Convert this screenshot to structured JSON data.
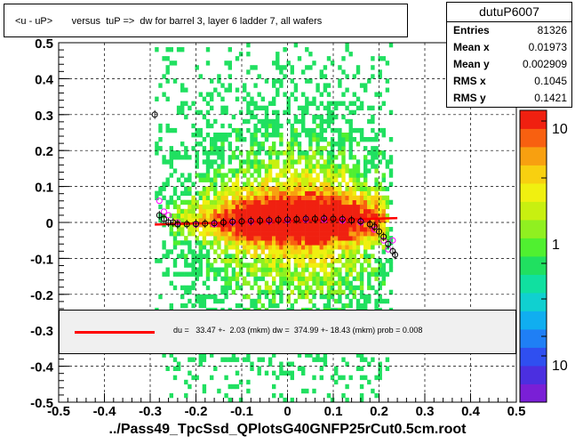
{
  "chart_data": {
    "type": "heatmap",
    "title": "<u - uP>       versus  tuP =>  dw for barrel 3, layer 6 ladder 7, all wafers",
    "xlabel": "../Pass49_TpcSsd_QPlotsG40GNFP25rCut0.5cm.root",
    "ylabel": "",
    "xlim": [
      -0.5,
      0.5
    ],
    "ylim": [
      -0.5,
      0.5
    ],
    "x_ticks": [
      "-0.5",
      "-0.4",
      "-0.3",
      "-0.2",
      "-0.1",
      "0",
      "0.1",
      "0.2",
      "0.3",
      "0.4",
      "0.5"
    ],
    "y_ticks": [
      "0.5",
      "0.4",
      "0.3",
      "0.2",
      "0.1",
      "0",
      "-0.1",
      "-0.2",
      "-0.3",
      "-0.4",
      "-0.5"
    ],
    "grid": true,
    "colorbar": {
      "scale": "log",
      "labels": [
        "10",
        "1",
        "10"
      ]
    },
    "stats": {
      "name": "dutuP6007",
      "rows": [
        {
          "key": "Entries",
          "value": "81326"
        },
        {
          "key": "Mean x",
          "value": "0.01973"
        },
        {
          "key": "Mean y",
          "value": "0.002909"
        },
        {
          "key": "RMS x",
          "value": "0.1045"
        },
        {
          "key": "RMS y",
          "value": "0.1421"
        }
      ]
    },
    "legend_text": "du =   33.47 +-  2.03 (mkm) dw =  374.99 +- 18.43 (mkm) prob = 0.008",
    "fit_line": {
      "x": [
        -0.29,
        0.24
      ],
      "y": [
        -0.006,
        0.012
      ]
    },
    "profile_black": [
      [
        -0.29,
        0.3
      ],
      [
        -0.28,
        0.02
      ],
      [
        -0.27,
        0.01
      ],
      [
        -0.26,
        0.0
      ],
      [
        -0.25,
        0.0
      ],
      [
        -0.24,
        -0.005
      ],
      [
        -0.22,
        -0.005
      ],
      [
        -0.2,
        -0.004
      ],
      [
        -0.18,
        -0.003
      ],
      [
        -0.16,
        -0.002
      ],
      [
        -0.14,
        0.0
      ],
      [
        -0.12,
        0.002
      ],
      [
        -0.1,
        0.003
      ],
      [
        -0.08,
        0.004
      ],
      [
        -0.06,
        0.005
      ],
      [
        -0.04,
        0.006
      ],
      [
        -0.02,
        0.007
      ],
      [
        0.0,
        0.008
      ],
      [
        0.02,
        0.009
      ],
      [
        0.04,
        0.01
      ],
      [
        0.06,
        0.01
      ],
      [
        0.08,
        0.011
      ],
      [
        0.1,
        0.01
      ],
      [
        0.12,
        0.009
      ],
      [
        0.14,
        0.006
      ],
      [
        0.16,
        0.003
      ],
      [
        0.18,
        -0.005
      ],
      [
        0.19,
        -0.012
      ],
      [
        0.2,
        -0.025
      ],
      [
        0.21,
        -0.04
      ],
      [
        0.22,
        -0.06
      ],
      [
        0.23,
        -0.08
      ],
      [
        0.235,
        -0.09
      ]
    ],
    "profile_magenta": [
      [
        -0.28,
        0.06
      ],
      [
        -0.27,
        0.03
      ],
      [
        -0.26,
        0.02
      ],
      [
        -0.24,
        0.0
      ],
      [
        -0.2,
        -0.006
      ],
      [
        -0.16,
        -0.005
      ],
      [
        -0.12,
        0.0
      ],
      [
        -0.08,
        0.002
      ],
      [
        -0.04,
        0.004
      ],
      [
        0.0,
        0.006
      ],
      [
        0.04,
        0.008
      ],
      [
        0.08,
        0.007
      ],
      [
        0.12,
        0.005
      ],
      [
        0.16,
        0.0
      ],
      [
        0.19,
        -0.02
      ],
      [
        0.21,
        -0.05
      ],
      [
        0.22,
        -0.075
      ],
      [
        0.23,
        -0.05
      ]
    ]
  }
}
